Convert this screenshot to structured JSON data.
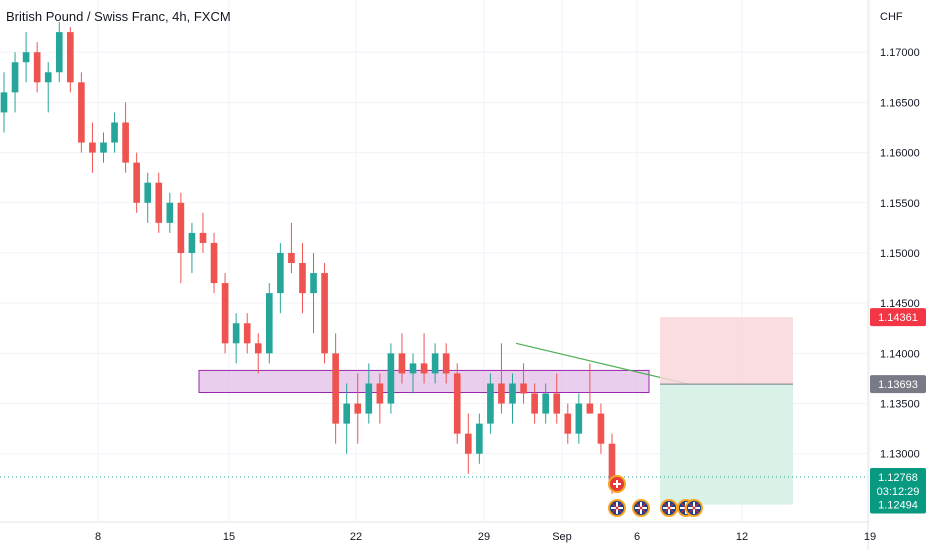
{
  "header": {
    "title": "British Pound / Swiss Franc, 4h, FXCM",
    "currency": "CHF"
  },
  "colors": {
    "up": "#26a69a",
    "down": "#ef5350",
    "grid": "#f0f3fa",
    "axis_text": "#131722",
    "zone_fill": "#e1bee7",
    "zone_stroke": "#9c27b0",
    "trendline": "#4caf50",
    "stop_fill": "#f8d7da",
    "target_fill": "#d6efe6",
    "stop_badge": "#f23645",
    "entry_badge": "#787b86",
    "target_badge": "#089981",
    "price_line": "#26a69a"
  },
  "chart_data": {
    "type": "candlestick",
    "title": "British Pound / Swiss Franc, 4h, FXCM",
    "y_axis_label": "CHF",
    "ylim": [
      1.1232,
      1.1752
    ],
    "y_ticks": [
      "1.17000",
      "1.16500",
      "1.16000",
      "1.15500",
      "1.15000",
      "1.14500",
      "1.14000",
      "1.13500",
      "1.13000"
    ],
    "y_tick_values": [
      1.17,
      1.165,
      1.16,
      1.155,
      1.15,
      1.145,
      1.14,
      1.135,
      1.13
    ],
    "x_ticks": [
      "8",
      "15",
      "22",
      "29",
      "Sep",
      "6",
      "12",
      "19"
    ],
    "candles": [
      [
        1.164,
        1.168,
        1.162,
        1.166
      ],
      [
        1.166,
        1.17,
        1.164,
        1.169
      ],
      [
        1.169,
        1.172,
        1.167,
        1.17
      ],
      [
        1.17,
        1.171,
        1.166,
        1.167
      ],
      [
        1.167,
        1.169,
        1.164,
        1.168
      ],
      [
        1.168,
        1.173,
        1.167,
        1.172
      ],
      [
        1.172,
        1.1725,
        1.166,
        1.167
      ],
      [
        1.167,
        1.168,
        1.16,
        1.161
      ],
      [
        1.161,
        1.163,
        1.158,
        1.16
      ],
      [
        1.16,
        1.162,
        1.159,
        1.161
      ],
      [
        1.161,
        1.164,
        1.16,
        1.163
      ],
      [
        1.163,
        1.165,
        1.158,
        1.159
      ],
      [
        1.159,
        1.16,
        1.154,
        1.155
      ],
      [
        1.155,
        1.158,
        1.153,
        1.157
      ],
      [
        1.157,
        1.158,
        1.152,
        1.153
      ],
      [
        1.153,
        1.156,
        1.152,
        1.155
      ],
      [
        1.155,
        1.156,
        1.147,
        1.15
      ],
      [
        1.15,
        1.153,
        1.148,
        1.152
      ],
      [
        1.152,
        1.154,
        1.15,
        1.151
      ],
      [
        1.151,
        1.152,
        1.146,
        1.147
      ],
      [
        1.147,
        1.148,
        1.14,
        1.141
      ],
      [
        1.141,
        1.144,
        1.139,
        1.143
      ],
      [
        1.143,
        1.144,
        1.14,
        1.141
      ],
      [
        1.141,
        1.142,
        1.138,
        1.14
      ],
      [
        1.14,
        1.147,
        1.139,
        1.146
      ],
      [
        1.146,
        1.151,
        1.144,
        1.15
      ],
      [
        1.15,
        1.153,
        1.148,
        1.149
      ],
      [
        1.149,
        1.151,
        1.144,
        1.146
      ],
      [
        1.146,
        1.15,
        1.142,
        1.148
      ],
      [
        1.148,
        1.149,
        1.139,
        1.14
      ],
      [
        1.14,
        1.142,
        1.131,
        1.133
      ],
      [
        1.133,
        1.137,
        1.13,
        1.135
      ],
      [
        1.135,
        1.138,
        1.131,
        1.134
      ],
      [
        1.134,
        1.139,
        1.133,
        1.137
      ],
      [
        1.137,
        1.138,
        1.133,
        1.135
      ],
      [
        1.135,
        1.141,
        1.134,
        1.14
      ],
      [
        1.14,
        1.142,
        1.137,
        1.138
      ],
      [
        1.138,
        1.14,
        1.136,
        1.139
      ],
      [
        1.139,
        1.142,
        1.137,
        1.138
      ],
      [
        1.138,
        1.141,
        1.137,
        1.14
      ],
      [
        1.14,
        1.141,
        1.137,
        1.138
      ],
      [
        1.138,
        1.139,
        1.131,
        1.132
      ],
      [
        1.132,
        1.134,
        1.128,
        1.13
      ],
      [
        1.13,
        1.134,
        1.129,
        1.133
      ],
      [
        1.133,
        1.138,
        1.132,
        1.137
      ],
      [
        1.137,
        1.141,
        1.134,
        1.135
      ],
      [
        1.135,
        1.138,
        1.133,
        1.137
      ],
      [
        1.137,
        1.139,
        1.135,
        1.136
      ],
      [
        1.136,
        1.137,
        1.133,
        1.134
      ],
      [
        1.134,
        1.137,
        1.133,
        1.136
      ],
      [
        1.136,
        1.138,
        1.133,
        1.134
      ],
      [
        1.134,
        1.135,
        1.131,
        1.132
      ],
      [
        1.132,
        1.136,
        1.131,
        1.135
      ],
      [
        1.135,
        1.139,
        1.134,
        1.134
      ],
      [
        1.134,
        1.135,
        1.13,
        1.131
      ],
      [
        1.131,
        1.132,
        1.126,
        1.127
      ]
    ],
    "support_zone": {
      "top": 1.1383,
      "bottom": 1.1361
    },
    "trendline": {
      "start_price": 1.141,
      "end_price": 1.1369
    },
    "position": {
      "stop": 1.14361,
      "entry": 1.13693,
      "target": 1.12494
    },
    "last_price": 1.12768,
    "price_badges": {
      "stop": "1.14361",
      "entry": "1.13693",
      "last": "1.12768",
      "countdown": "03:12:29",
      "target": "1.12494"
    }
  }
}
